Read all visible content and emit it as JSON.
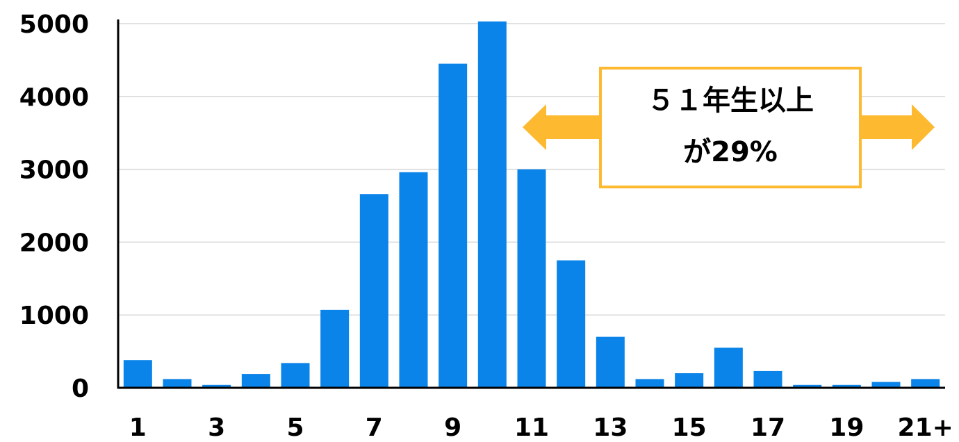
{
  "chart_data": {
    "type": "bar",
    "categories": [
      "1",
      "2",
      "3",
      "4",
      "5",
      "6",
      "7",
      "8",
      "9",
      "10",
      "11",
      "12",
      "13",
      "14",
      "15",
      "16",
      "17",
      "18",
      "19",
      "20",
      "21+"
    ],
    "values": [
      380,
      120,
      40,
      190,
      340,
      1070,
      2660,
      2960,
      4450,
      5030,
      3000,
      1750,
      700,
      120,
      200,
      550,
      230,
      40,
      40,
      80,
      120
    ],
    "tick_labels_x": [
      "1",
      "3",
      "5",
      "7",
      "9",
      "11",
      "13",
      "15",
      "17",
      "19",
      "21+"
    ],
    "tick_labels_y": [
      "0",
      "1000",
      "2000",
      "3000",
      "4000",
      "5000"
    ],
    "ylim": [
      0,
      5000
    ],
    "grid": true,
    "title": "",
    "xlabel": "",
    "ylabel": ""
  },
  "annotation": {
    "line1": "５１年生以上",
    "line2": "が29%"
  },
  "colors": {
    "bar": "#0A84E8",
    "grid": "#D9D9D9",
    "axis": "#000000",
    "annotation_border": "#FDB92F",
    "arrow": "#FDB92F"
  }
}
